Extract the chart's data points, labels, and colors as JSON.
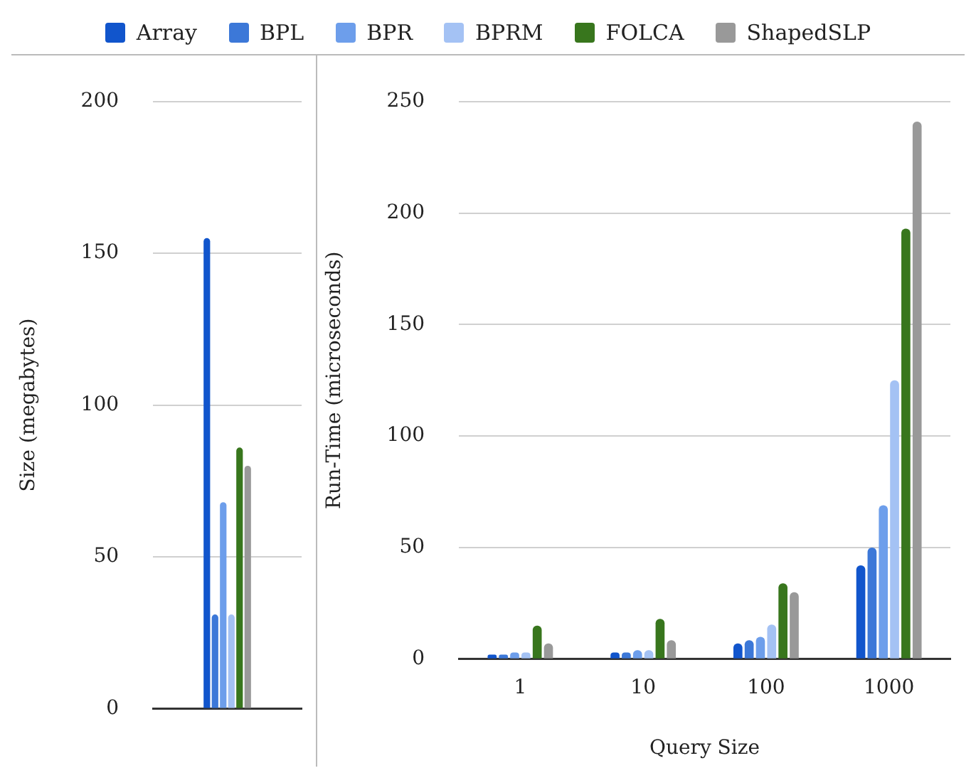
{
  "chart_data": [
    {
      "type": "bar",
      "categories": [
        null
      ],
      "ylabel": "Size (megabytes)",
      "ylim": [
        0,
        200
      ],
      "yticks": [
        0,
        50,
        100,
        150,
        200
      ],
      "grid": "y",
      "legend": "top",
      "series": [
        {
          "name": "Array",
          "color": "#1155cc",
          "values": [
            155
          ]
        },
        {
          "name": "BPL",
          "color": "#3c78d8",
          "values": [
            31
          ]
        },
        {
          "name": "BPR",
          "color": "#6d9eeb",
          "values": [
            68
          ]
        },
        {
          "name": "BPRM",
          "color": "#a4c2f4",
          "values": [
            31
          ]
        },
        {
          "name": "FOLCA",
          "color": "#38761d",
          "values": [
            86
          ]
        },
        {
          "name": "ShapedSLP",
          "color": "#999999",
          "values": [
            80
          ]
        }
      ]
    },
    {
      "type": "bar",
      "categories": [
        "1",
        "10",
        "100",
        "1000"
      ],
      "xlabel": "Query Size",
      "ylabel": "Run-Time (microseconds)",
      "ylim": [
        0,
        250
      ],
      "yticks": [
        0,
        50,
        100,
        150,
        200,
        250
      ],
      "grid": "y",
      "series": [
        {
          "name": "Array",
          "color": "#1155cc",
          "values": [
            2,
            3,
            7,
            42
          ]
        },
        {
          "name": "BPL",
          "color": "#3c78d8",
          "values": [
            2,
            3,
            8.5,
            50
          ]
        },
        {
          "name": "BPR",
          "color": "#6d9eeb",
          "values": [
            3,
            4,
            10,
            69
          ]
        },
        {
          "name": "BPRM",
          "color": "#a4c2f4",
          "values": [
            3,
            4,
            15.5,
            125
          ]
        },
        {
          "name": "FOLCA",
          "color": "#38761d",
          "values": [
            15,
            18,
            34,
            193
          ]
        },
        {
          "name": "ShapedSLP",
          "color": "#999999",
          "values": [
            7,
            8.5,
            30,
            241
          ]
        }
      ]
    }
  ]
}
